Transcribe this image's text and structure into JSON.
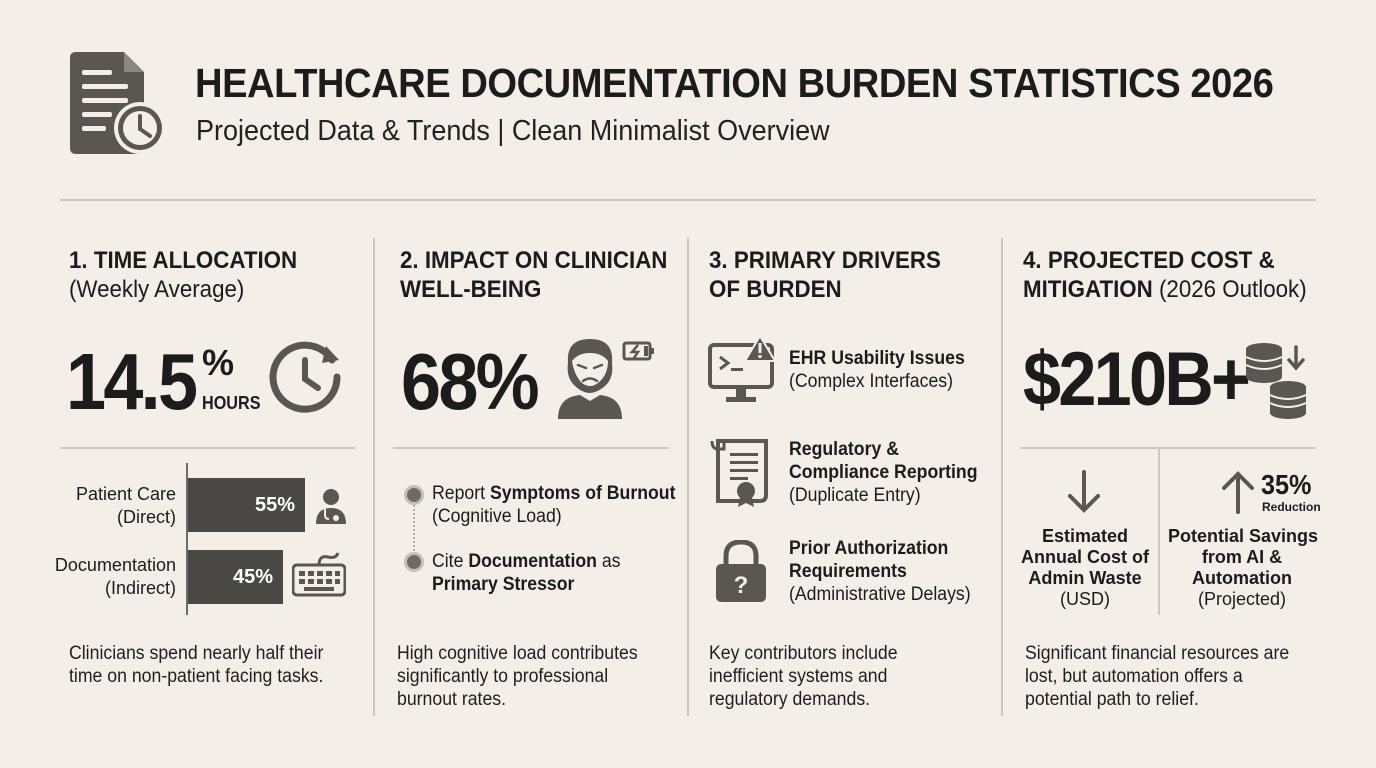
{
  "header": {
    "title": "HEALTHCARE DOCUMENTATION BURDEN STATISTICS 2026",
    "subtitle": "Projected Data & Trends | Clean Minimalist Overview"
  },
  "colors": {
    "background": "#f3eee8",
    "bar": "#4a4845",
    "icon": "#5a5753",
    "divider": "#cfc7bd"
  },
  "s1": {
    "title": "1. TIME ALLOCATION",
    "title_sub": "(Weekly Average)",
    "big_value": "14.5",
    "big_unit_top": "%",
    "big_unit_bottom": "HOURS",
    "bars": [
      {
        "label1": "Patient Care",
        "label2": "(Direct)",
        "value": "55%",
        "fraction": 0.55,
        "icon": "doctor-icon"
      },
      {
        "label1": "Documentation",
        "label2": "(Indirect)",
        "value": "45%",
        "fraction": 0.45,
        "icon": "keyboard-icon"
      }
    ],
    "note1": "Clinicians spend nearly half their",
    "note2": "time on non-patient facing tasks."
  },
  "s2": {
    "title1": "2. IMPACT ON CLINICIAN",
    "title2": "WELL-BEING",
    "big_value": "68%",
    "b1_pre": "Report ",
    "b1_bold": "Symptoms of Burnout",
    "b1_line2": "(Cognitive Load)",
    "b2_pre": "Cite ",
    "b2_bold": "Documentation",
    "b2_post": " as",
    "b2_line2": "Primary Stressor",
    "note1": "High cognitive load contributes",
    "note2": "significantly to professional",
    "note3": "burnout rates."
  },
  "s3": {
    "title1": "3. PRIMARY DRIVERS",
    "title2": "OF BURDEN",
    "d1_bold": "EHR Usability Issues",
    "d1_sub": "(Complex Interfaces)",
    "d2_bold1": "Regulatory &",
    "d2_bold2": "Compliance Reporting",
    "d2_sub": "(Duplicate Entry)",
    "d3_bold1": "Prior Authorization",
    "d3_bold2": "Requirements",
    "d3_sub": "(Administrative Delays)",
    "note1": "Key contributors include",
    "note2": "inefficient systems and",
    "note3": "regulatory demands."
  },
  "s4": {
    "title1": "4. PROJECTED COST &",
    "title2": "MITIGATION",
    "title2_light": " (2026 Outlook)",
    "big_value": "$210B+",
    "reduction_value": "35%",
    "reduction_label": "Reduction",
    "left_b1": "Estimated",
    "left_b2": "Annual Cost of",
    "left_b3": "Admin Waste",
    "left_sub": "(USD)",
    "right_b1": "Potential Savings",
    "right_b2": "from AI &",
    "right_b3": "Automation",
    "right_sub": "(Projected)",
    "note1": "Significant financial resources are",
    "note2": "lost, but automation offers a",
    "note3": "potential path to relief."
  }
}
